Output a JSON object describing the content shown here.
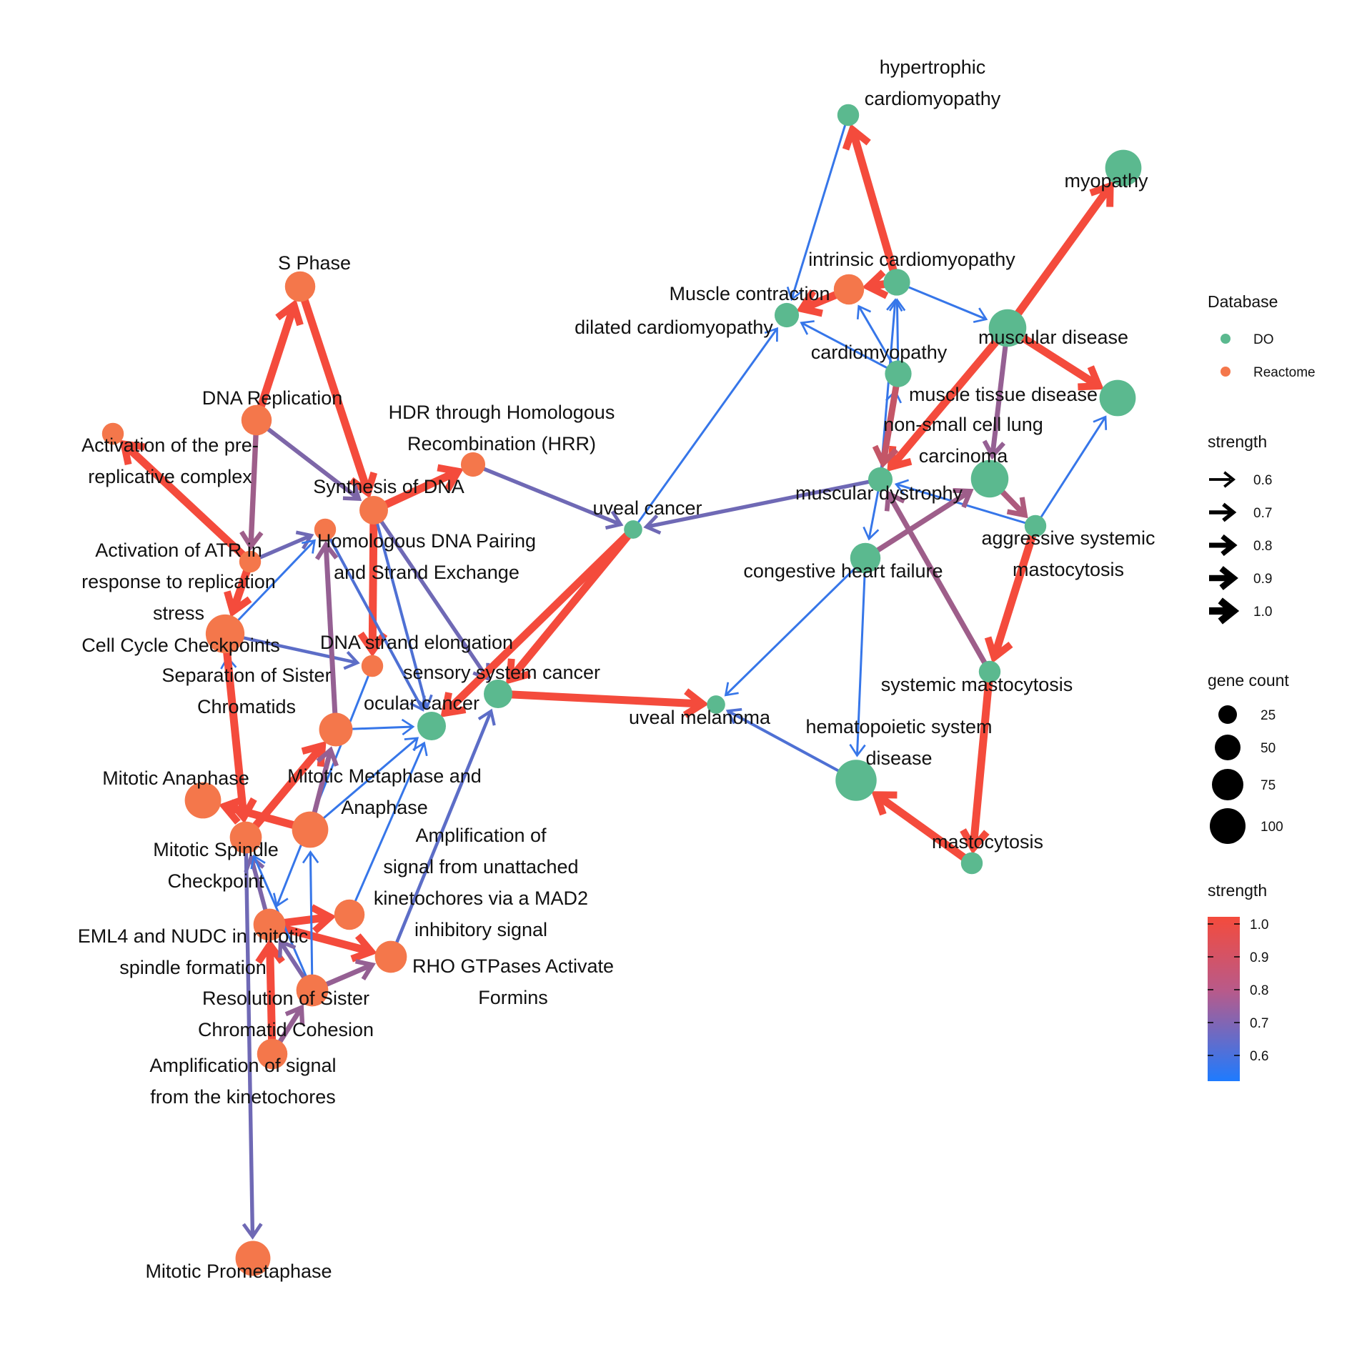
{
  "colors": {
    "DO": "#5bb98f",
    "Reactome": "#f4774b",
    "strength_low": "#1e7bff",
    "strength_high": "#f44b3c"
  },
  "nodes": [
    {
      "id": "hcm",
      "lines": [
        "hypertrophic",
        "cardiomyopathy"
      ],
      "db": "DO",
      "gene_count": 10
    },
    {
      "id": "myopathy",
      "lines": [
        "myopathy"
      ],
      "db": "DO",
      "gene_count": 50
    },
    {
      "id": "icm",
      "lines": [
        "intrinsic cardiomyopathy"
      ],
      "db": "DO",
      "gene_count": 20
    },
    {
      "id": "mc",
      "lines": [
        "Muscle contraction"
      ],
      "db": "Reactome",
      "gene_count": 30
    },
    {
      "id": "dcm",
      "lines": [
        "dilated cardiomyopathy"
      ],
      "db": "DO",
      "gene_count": 15
    },
    {
      "id": "md",
      "lines": [
        "muscular disease"
      ],
      "db": "DO",
      "gene_count": 55
    },
    {
      "id": "cm",
      "lines": [
        "cardiomyopathy"
      ],
      "db": "DO",
      "gene_count": 20
    },
    {
      "id": "mtd",
      "lines": [
        "muscle tissue disease"
      ],
      "db": "DO",
      "gene_count": 50
    },
    {
      "id": "nsclc",
      "lines": [
        "non-small cell lung",
        "carcinoma"
      ],
      "db": "DO",
      "gene_count": 55
    },
    {
      "id": "mdys",
      "lines": [
        "muscular dystrophy"
      ],
      "db": "DO",
      "gene_count": 15
    },
    {
      "id": "asm",
      "lines": [
        "aggressive systemic",
        "mastocytosis"
      ],
      "db": "DO",
      "gene_count": 10
    },
    {
      "id": "chf",
      "lines": [
        "congestive heart failure"
      ],
      "db": "DO",
      "gene_count": 30
    },
    {
      "id": "sm",
      "lines": [
        "systemic mastocytosis"
      ],
      "db": "DO",
      "gene_count": 10
    },
    {
      "id": "hsd",
      "lines": [
        "hematopoietic system",
        "disease"
      ],
      "db": "DO",
      "gene_count": 70
    },
    {
      "id": "masto",
      "lines": [
        "mastocytosis"
      ],
      "db": "DO",
      "gene_count": 10
    },
    {
      "id": "um",
      "lines": [
        "uveal melanoma"
      ],
      "db": "DO",
      "gene_count": 5
    },
    {
      "id": "uc",
      "lines": [
        "uveal cancer"
      ],
      "db": "DO",
      "gene_count": 5
    },
    {
      "id": "ssc",
      "lines": [
        "sensory system cancer"
      ],
      "db": "DO",
      "gene_count": 25
    },
    {
      "id": "oc",
      "lines": [
        "ocular cancer"
      ],
      "db": "DO",
      "gene_count": 25
    },
    {
      "id": "sphase",
      "lines": [
        "S Phase"
      ],
      "db": "Reactome",
      "gene_count": 30
    },
    {
      "id": "dnarep",
      "lines": [
        "DNA Replication"
      ],
      "db": "Reactome",
      "gene_count": 30
    },
    {
      "id": "apc",
      "lines": [
        "Activation of the pre-",
        "replicative complex"
      ],
      "db": "Reactome",
      "gene_count": 10
    },
    {
      "id": "hdr",
      "lines": [
        "HDR through Homologous",
        "Recombination (HRR)"
      ],
      "db": "Reactome",
      "gene_count": 15
    },
    {
      "id": "syndna",
      "lines": [
        "Synthesis of DNA"
      ],
      "db": "Reactome",
      "gene_count": 25
    },
    {
      "id": "hdnap",
      "lines": [
        "Homologous DNA Pairing",
        "and Strand Exchange"
      ],
      "db": "Reactome",
      "gene_count": 10
    },
    {
      "id": "atr",
      "lines": [
        "Activation of ATR in",
        "response to replication",
        "stress"
      ],
      "db": "Reactome",
      "gene_count": 10
    },
    {
      "id": "ccc",
      "lines": [
        "Cell Cycle Checkpoints"
      ],
      "db": "Reactome",
      "gene_count": 60
    },
    {
      "id": "dnael",
      "lines": [
        "DNA strand elongation"
      ],
      "db": "Reactome",
      "gene_count": 10
    },
    {
      "id": "ssc2",
      "lines": [
        "Separation of Sister",
        "Chromatids"
      ],
      "db": "Reactome",
      "gene_count": 40
    },
    {
      "id": "manaph",
      "lines": [
        "Mitotic Anaphase"
      ],
      "db": "Reactome",
      "gene_count": 50
    },
    {
      "id": "mmaa",
      "lines": [
        "Mitotic Metaphase and",
        "Anaphase"
      ],
      "db": "Reactome",
      "gene_count": 50
    },
    {
      "id": "msc",
      "lines": [
        "Mitotic Spindle",
        "Checkpoint"
      ],
      "db": "Reactome",
      "gene_count": 35
    },
    {
      "id": "amad2",
      "lines": [
        "Amplification of",
        "signal from unattached",
        "kinetochores via a MAD2",
        "inhibitory signal"
      ],
      "db": "Reactome",
      "gene_count": 30
    },
    {
      "id": "eml4",
      "lines": [
        "EML4 and NUDC in mitotic",
        "spindle formation"
      ],
      "db": "Reactome",
      "gene_count": 35
    },
    {
      "id": "rho",
      "lines": [
        "RHO GTPases Activate",
        "Formins"
      ],
      "db": "Reactome",
      "gene_count": 35
    },
    {
      "id": "rscc",
      "lines": [
        "Resolution of Sister",
        "Chromatid Cohesion"
      ],
      "db": "Reactome",
      "gene_count": 35
    },
    {
      "id": "ask",
      "lines": [
        "Amplification of signal",
        "from the kinetochores"
      ],
      "db": "Reactome",
      "gene_count": 30
    },
    {
      "id": "mpm",
      "lines": [
        "Mitotic Prometaphase"
      ],
      "db": "Reactome",
      "gene_count": 45
    }
  ],
  "edges": [
    {
      "from": "sphase",
      "to": "syndna",
      "strength": 1.0
    },
    {
      "from": "dnarep",
      "to": "sphase",
      "strength": 1.0
    },
    {
      "from": "dnarep",
      "to": "syndna",
      "strength": 0.75
    },
    {
      "from": "atr",
      "to": "apc",
      "strength": 1.0
    },
    {
      "from": "syndna",
      "to": "hdr",
      "strength": 1.0
    },
    {
      "from": "syndna",
      "to": "dnael",
      "strength": 1.0
    },
    {
      "from": "syndna",
      "to": "oc",
      "strength": 0.65
    },
    {
      "from": "syndna",
      "to": "ssc",
      "strength": 0.72
    },
    {
      "from": "hdr",
      "to": "uc",
      "strength": 0.72
    },
    {
      "from": "hdnap",
      "to": "oc",
      "strength": 0.65
    },
    {
      "from": "atr",
      "to": "hdnap",
      "strength": 0.72
    },
    {
      "from": "dnarep",
      "to": "atr",
      "strength": 0.82
    },
    {
      "from": "ccc",
      "to": "hdnap",
      "strength": 0.6
    },
    {
      "from": "ccc",
      "to": "dnael",
      "strength": 0.68
    },
    {
      "from": "atr",
      "to": "ccc",
      "strength": 1.0
    },
    {
      "from": "msc",
      "to": "ccc",
      "strength": 0.6
    },
    {
      "from": "ccc",
      "to": "msc",
      "strength": 1.0
    },
    {
      "from": "ssc2",
      "to": "hdnap",
      "strength": 0.8
    },
    {
      "from": "ssc2",
      "to": "oc",
      "strength": 0.6
    },
    {
      "from": "dnael",
      "to": "eml4",
      "strength": 0.6
    },
    {
      "from": "msc",
      "to": "ssc2",
      "strength": 0.8
    },
    {
      "from": "mmaa",
      "to": "manaph",
      "strength": 1.0
    },
    {
      "from": "msc",
      "to": "ssc2",
      "strength": 1.0
    },
    {
      "from": "mmaa",
      "to": "ssc2",
      "strength": 0.8
    },
    {
      "from": "mmaa",
      "to": "oc",
      "strength": 0.6
    },
    {
      "from": "eml4",
      "to": "amad2",
      "strength": 1.0
    },
    {
      "from": "eml4",
      "to": "rho",
      "strength": 1.0
    },
    {
      "from": "ask",
      "to": "eml4",
      "strength": 1.0
    },
    {
      "from": "eml4",
      "to": "msc",
      "strength": 0.75
    },
    {
      "from": "rscc",
      "to": "mmaa",
      "strength": 0.6
    },
    {
      "from": "rscc",
      "to": "msc",
      "strength": 0.6
    },
    {
      "from": "rscc",
      "to": "rho",
      "strength": 0.8
    },
    {
      "from": "ask",
      "to": "rscc",
      "strength": 0.8
    },
    {
      "from": "amad2",
      "to": "oc",
      "strength": 0.6
    },
    {
      "from": "rscc",
      "to": "eml4",
      "strength": 0.75
    },
    {
      "from": "rho",
      "to": "ssc",
      "strength": 0.68
    },
    {
      "from": "msc",
      "to": "mpm",
      "strength": 0.72
    },
    {
      "from": "ssc",
      "to": "um",
      "strength": 1.0
    },
    {
      "from": "uc",
      "to": "ssc",
      "strength": 1.0
    },
    {
      "from": "uc",
      "to": "oc",
      "strength": 1.0
    },
    {
      "from": "uc",
      "to": "dcm",
      "strength": 0.6
    },
    {
      "from": "mdys",
      "to": "uc",
      "strength": 0.72
    },
    {
      "from": "icm",
      "to": "hcm",
      "strength": 1.0
    },
    {
      "from": "hcm",
      "to": "dcm",
      "strength": 0.6
    },
    {
      "from": "md",
      "to": "myopathy",
      "strength": 1.0
    },
    {
      "from": "md",
      "to": "mtd",
      "strength": 1.0
    },
    {
      "from": "md",
      "to": "mdys",
      "strength": 1.0
    },
    {
      "from": "md",
      "to": "nsclc",
      "strength": 0.8
    },
    {
      "from": "icm",
      "to": "md",
      "strength": 0.6
    },
    {
      "from": "icm",
      "to": "mc",
      "strength": 1.0
    },
    {
      "from": "mc",
      "to": "dcm",
      "strength": 1.0
    },
    {
      "from": "cm",
      "to": "dcm",
      "strength": 0.6
    },
    {
      "from": "cm",
      "to": "icm",
      "strength": 0.6
    },
    {
      "from": "cm",
      "to": "mc",
      "strength": 0.6
    },
    {
      "from": "mdys",
      "to": "cm",
      "strength": 0.6
    },
    {
      "from": "mdys",
      "to": "icm",
      "strength": 0.6
    },
    {
      "from": "cm",
      "to": "mdys",
      "strength": 0.9
    },
    {
      "from": "nsclc",
      "to": "asm",
      "strength": 0.85
    },
    {
      "from": "asm",
      "to": "mtd",
      "strength": 0.6
    },
    {
      "from": "asm",
      "to": "mdys",
      "strength": 0.6
    },
    {
      "from": "asm",
      "to": "sm",
      "strength": 1.0
    },
    {
      "from": "chf",
      "to": "nsclc",
      "strength": 0.82
    },
    {
      "from": "chf",
      "to": "um",
      "strength": 0.6
    },
    {
      "from": "chf",
      "to": "hsd",
      "strength": 0.6
    },
    {
      "from": "mdys",
      "to": "chf",
      "strength": 0.6
    },
    {
      "from": "sm",
      "to": "mdys",
      "strength": 0.82
    },
    {
      "from": "sm",
      "to": "masto",
      "strength": 1.0
    },
    {
      "from": "masto",
      "to": "hsd",
      "strength": 1.0
    },
    {
      "from": "hsd",
      "to": "um",
      "strength": 0.65
    }
  ],
  "legend": {
    "database_title": "Database",
    "database_items": [
      {
        "label": "DO",
        "color": "#5bb98f"
      },
      {
        "label": "Reactome",
        "color": "#f4774b"
      }
    ],
    "strength_title": "strength",
    "strength_arrow_values": [
      "0.6",
      "0.7",
      "0.8",
      "0.9",
      "1.0"
    ],
    "gene_count_title": "gene count",
    "gene_count_values": [
      "25",
      "50",
      "75",
      "100"
    ],
    "strength_color_title": "strength",
    "strength_color_ticks": [
      "1.0",
      "0.9",
      "0.8",
      "0.7",
      "0.6"
    ]
  }
}
